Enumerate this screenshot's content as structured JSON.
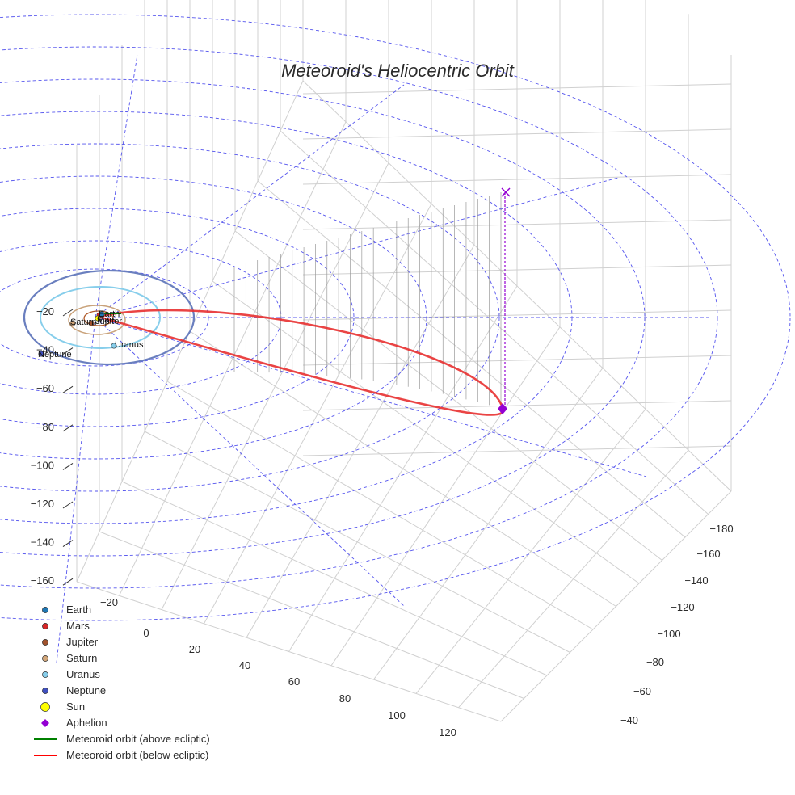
{
  "chart_data": {
    "type": "3d-scatter-line",
    "title": "Meteoroid's Heliocentric Orbit",
    "axis_z_ticks": [
      "−20",
      "−40",
      "−60",
      "−80",
      "−100",
      "−120",
      "−140",
      "−160"
    ],
    "axis_x_ticks": [
      "−20",
      "0",
      "20",
      "40",
      "60",
      "80",
      "100",
      "120"
    ],
    "axis_y_ticks": [
      "−180",
      "−160",
      "−140",
      "−120",
      "−100",
      "−80",
      "−60",
      "−40"
    ],
    "planet_labels": [
      {
        "name": "Earth"
      },
      {
        "name": "Mars"
      },
      {
        "name": "Jupiter"
      },
      {
        "name": "Saturn"
      },
      {
        "name": "Uranus"
      },
      {
        "name": "Neptune"
      }
    ],
    "legend": [
      {
        "label": "Earth",
        "marker": "circle",
        "color": "#1f77b4"
      },
      {
        "label": "Mars",
        "marker": "circle",
        "color": "#d62728"
      },
      {
        "label": "Jupiter",
        "marker": "circle",
        "color": "#a0522d"
      },
      {
        "label": "Saturn",
        "marker": "circle",
        "color": "#d2a679"
      },
      {
        "label": "Uranus",
        "marker": "circle",
        "color": "#87ceeb"
      },
      {
        "label": "Neptune",
        "marker": "circle",
        "color": "#3f4fbf"
      },
      {
        "label": "Sun",
        "marker": "circle-large",
        "color": "#ffff00"
      },
      {
        "label": "Aphelion",
        "marker": "diamond",
        "color": "#9400d3"
      },
      {
        "label": "Meteoroid orbit (above ecliptic)",
        "marker": "line",
        "color": "#008000"
      },
      {
        "label": "Meteoroid orbit (below ecliptic)",
        "marker": "line",
        "color": "#ff0000"
      }
    ]
  },
  "colors": {
    "grid": "#d0d0d0",
    "guide": "#5555ee",
    "neptune_orbit": "#6a7fbf",
    "uranus_orbit": "#87ceeb",
    "meteoroid_below": "#e83030",
    "aphelion": "#9400d3"
  }
}
